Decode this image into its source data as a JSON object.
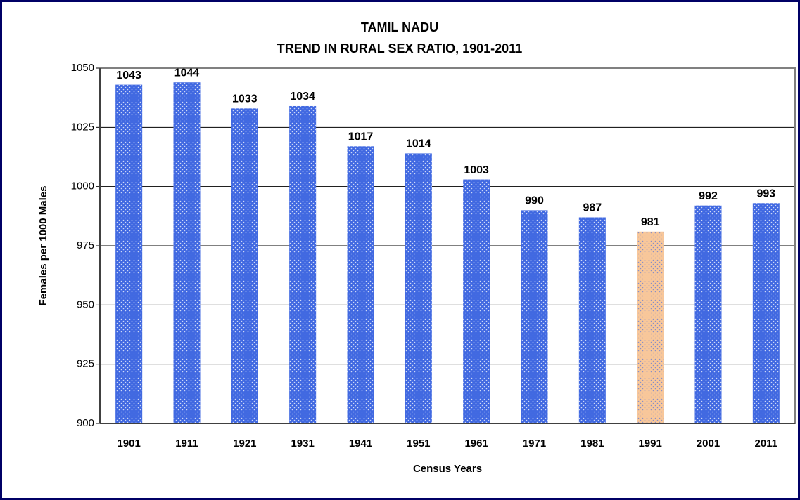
{
  "chart_data": {
    "type": "bar",
    "title": "TAMIL NADU",
    "subtitle": "TREND IN RURAL SEX RATIO, 1901-2011",
    "xlabel": "Census Years",
    "ylabel": "Females per 1000 Males",
    "categories": [
      "1901",
      "1911",
      "1921",
      "1931",
      "1941",
      "1951",
      "1961",
      "1971",
      "1981",
      "1991",
      "2001",
      "2011"
    ],
    "values": [
      1043,
      1044,
      1033,
      1034,
      1017,
      1014,
      1003,
      990,
      987,
      981,
      992,
      993
    ],
    "colors": [
      "#4169e1",
      "#4169e1",
      "#4169e1",
      "#4169e1",
      "#4169e1",
      "#4169e1",
      "#4169e1",
      "#4169e1",
      "#4169e1",
      "#f8c79a",
      "#4169e1",
      "#4169e1"
    ],
    "ylim": [
      900,
      1050
    ],
    "yticks": [
      900,
      925,
      950,
      975,
      1000,
      1025,
      1050
    ],
    "grid": true
  }
}
